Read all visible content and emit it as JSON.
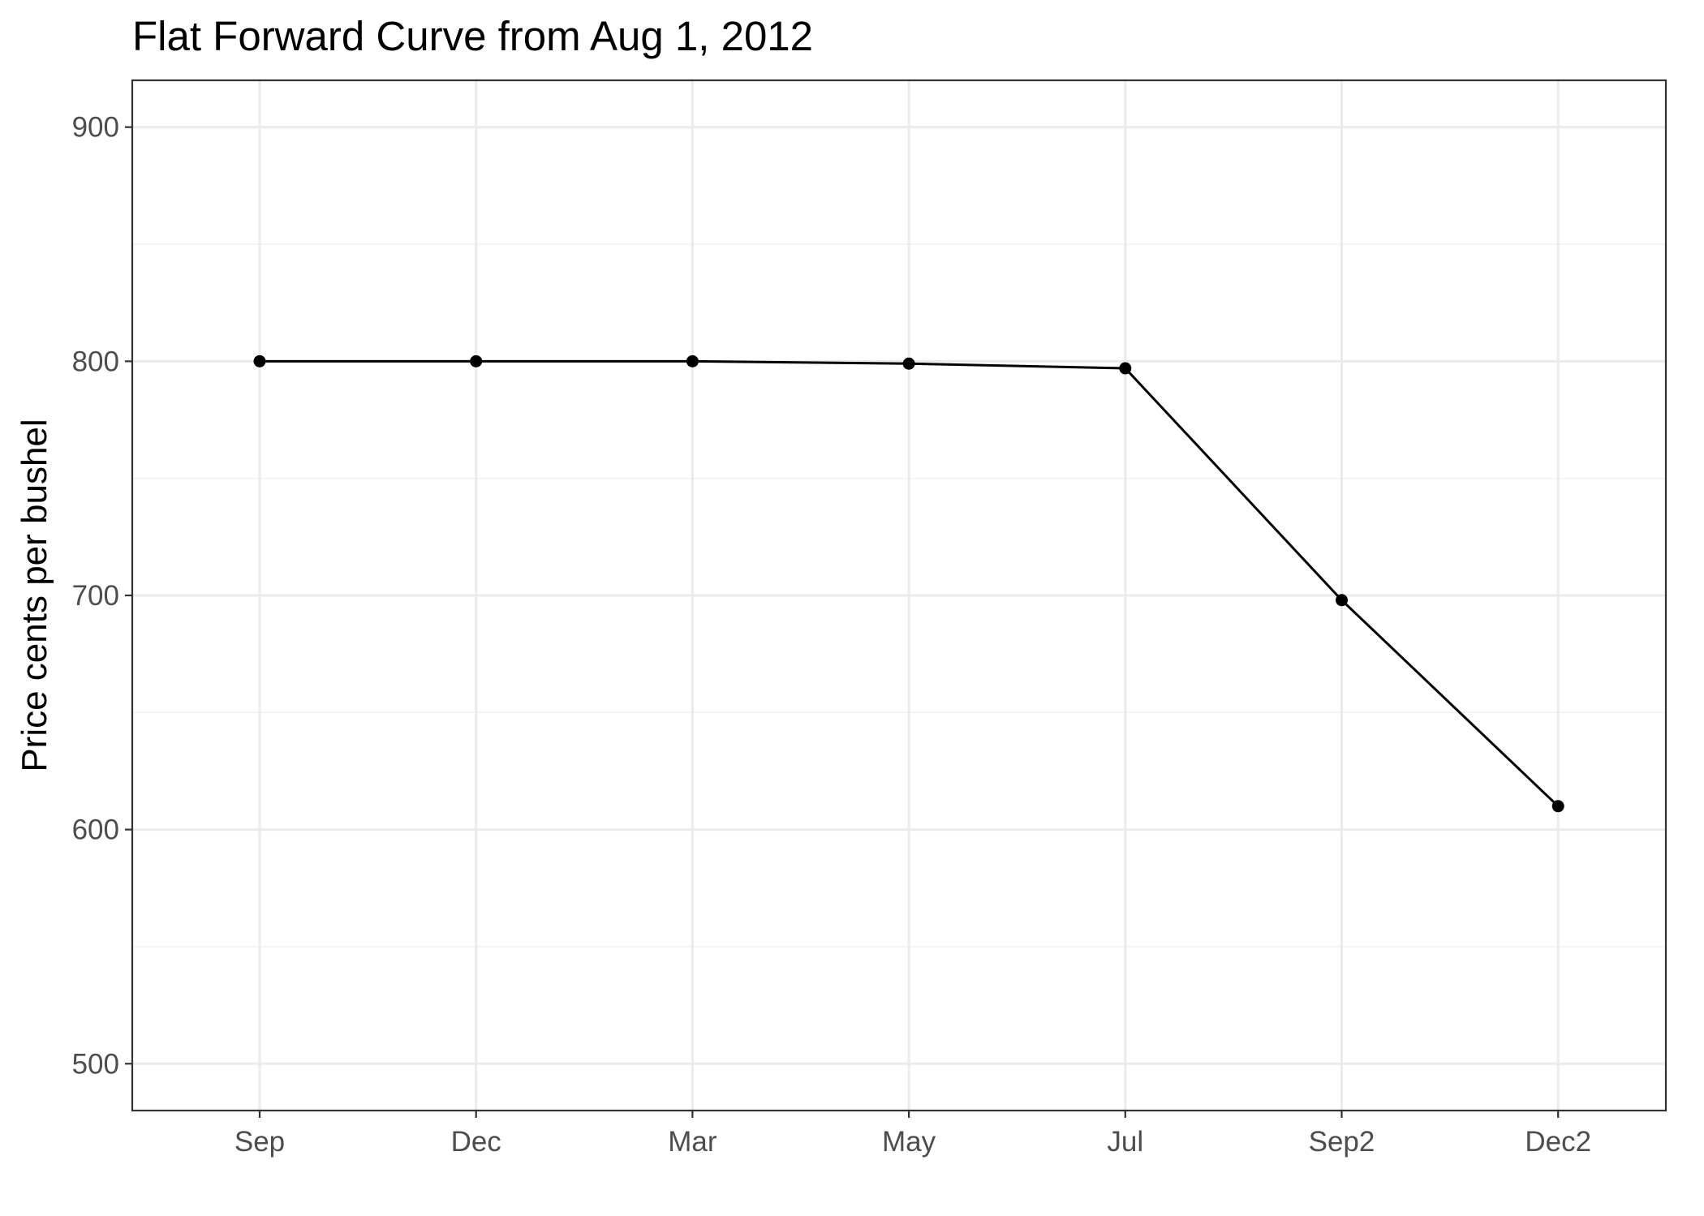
{
  "chart_data": {
    "type": "line",
    "title": "Flat Forward Curve from Aug 1, 2012",
    "xlabel": "",
    "ylabel": "Price cents per bushel",
    "categories": [
      "Sep",
      "Dec",
      "Mar",
      "May",
      "Jul",
      "Sep2",
      "Dec2"
    ],
    "series": [
      {
        "values": [
          800,
          800,
          800,
          799,
          797,
          698,
          610
        ]
      }
    ],
    "ylim": [
      480,
      920
    ],
    "yticks": [
      500,
      600,
      700,
      800,
      900
    ],
    "yticks_minor": [
      550,
      650,
      750,
      850
    ],
    "grid": true,
    "legend": "none",
    "colors": {
      "line": "#000000",
      "point": "#000000",
      "grid": "#ebebeb",
      "border": "#333333",
      "tick_text": "#4d4d4d"
    }
  }
}
